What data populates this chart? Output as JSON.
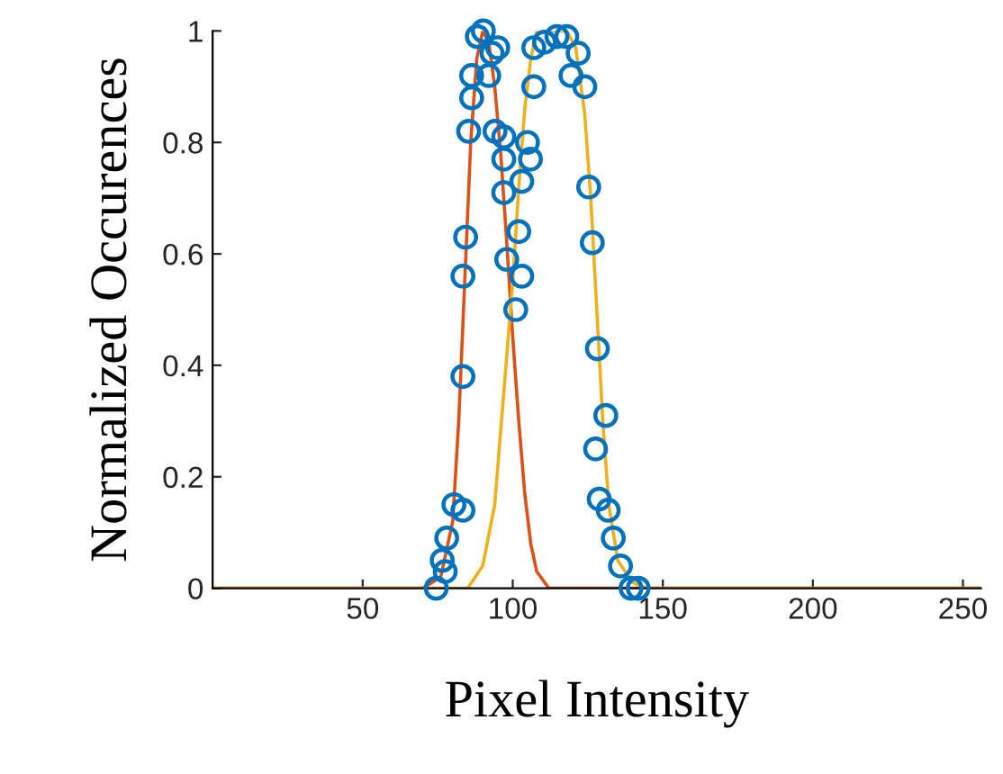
{
  "chart_data": {
    "type": "scatter",
    "xlabel": "Pixel Intensity",
    "ylabel": "Normalized Occurences",
    "xlim": [
      0,
      256
    ],
    "ylim": [
      0,
      1
    ],
    "xticks": [
      50,
      100,
      150,
      200,
      250
    ],
    "yticks": [
      0,
      0.2,
      0.4,
      0.6,
      0.8,
      1
    ],
    "grid": false,
    "legend": false,
    "series": [
      {
        "marker": "circle",
        "color": "#0072bd",
        "x": [
          74.5,
          77.5,
          76.5,
          78,
          80.4,
          83.4,
          83.4,
          83.4,
          84.3,
          85.3,
          86.3,
          86.3,
          88.2,
          90.2,
          93.1,
          92,
          95,
          94.1,
          97,
          97,
          97,
          98,
          101,
          102,
          103,
          104.9,
          105.9,
          103,
          107,
          107,
          110.6,
          114.7,
          118,
          121.8,
          119.4,
          124,
          125.3,
          126.5,
          128.2,
          127.6,
          128.8,
          131,
          131.8,
          133.5,
          135.9,
          139.4,
          141.8
        ],
        "values": [
          0,
          0.03,
          0.05,
          0.09,
          0.15,
          0.14,
          0.38,
          0.56,
          0.63,
          0.82,
          0.88,
          0.92,
          0.99,
          1.0,
          0.96,
          0.92,
          0.97,
          0.82,
          0.81,
          0.77,
          0.71,
          0.59,
          0.5,
          0.64,
          0.56,
          0.8,
          0.77,
          0.73,
          0.9,
          0.97,
          0.98,
          0.99,
          0.99,
          0.96,
          0.92,
          0.9,
          0.72,
          0.62,
          0.43,
          0.25,
          0.16,
          0.31,
          0.14,
          0.09,
          0.04,
          0,
          0
        ]
      },
      {
        "type": "line",
        "marker": "none",
        "line_style": "solid",
        "color": "#d95319",
        "x": [
          0,
          70,
          76,
          80,
          82,
          84,
          86,
          88,
          90,
          92,
          94,
          96,
          98,
          100,
          102,
          104,
          106,
          108,
          112,
          256
        ],
        "values": [
          0,
          0,
          0.02,
          0.12,
          0.3,
          0.55,
          0.8,
          0.95,
          1,
          0.98,
          0.9,
          0.78,
          0.62,
          0.45,
          0.3,
          0.17,
          0.08,
          0.03,
          0,
          0
        ]
      },
      {
        "type": "line",
        "marker": "none",
        "line_style": "solid",
        "color": "#edb120",
        "x": [
          0,
          85,
          90,
          94,
          97,
          100,
          102,
          104,
          106,
          108,
          118,
          121,
          124,
          126,
          128,
          130,
          132,
          135,
          140,
          145,
          256
        ],
        "values": [
          0,
          0,
          0.04,
          0.15,
          0.35,
          0.55,
          0.72,
          0.86,
          0.95,
          1,
          1,
          0.97,
          0.85,
          0.7,
          0.5,
          0.3,
          0.15,
          0.05,
          0.01,
          0,
          0
        ]
      }
    ]
  }
}
